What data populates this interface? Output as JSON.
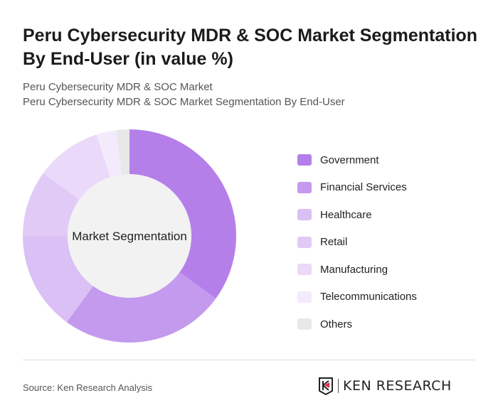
{
  "title": "Peru Cybersecurity MDR & SOC Market Segmentation By End-User (in value %)",
  "subtitle1": "Peru Cybersecurity MDR & SOC Market",
  "subtitle2": "Peru Cybersecurity MDR & SOC Market Segmentation By End-User",
  "source": "Source: Ken Research Analysis",
  "logo": "KEN RESEARCH",
  "chart_data": {
    "type": "pie",
    "variant": "donut",
    "center_label": "Market Segmentation",
    "legend_position": "right",
    "unit": "%",
    "categories": [
      "Government",
      "Financial Services",
      "Healthcare",
      "Retail",
      "Manufacturing",
      "Telecommunications",
      "Others"
    ],
    "values": [
      35,
      25,
      15,
      10,
      10,
      3,
      2
    ],
    "colors": [
      "#b57fea",
      "#c49aee",
      "#dac0f5",
      "#e1cbf6",
      "#ead9f9",
      "#f3ebfc",
      "#e8e8e8"
    ]
  }
}
